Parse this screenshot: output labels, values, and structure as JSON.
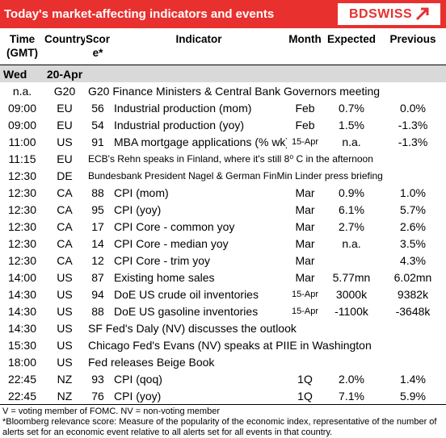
{
  "header": {
    "title": "Today's market-affecting indicators and events",
    "logo": "BDSWISS"
  },
  "columns": {
    "time": "Time (GMT)",
    "country": "Country",
    "score": "Score*",
    "indicator": "Indicator",
    "month": "Month",
    "expected": "Expected",
    "previous": "Previous"
  },
  "day": {
    "weekday": "Wed",
    "date": "20-Apr"
  },
  "rows": [
    {
      "time": "n.a.",
      "country": "G20",
      "indicator": "G20 Finance Ministers & Central Bank Governors meeting"
    },
    {
      "time": "09:00",
      "country": "EU",
      "score": 56,
      "indicator": "Industrial production (mom)",
      "month": "Feb",
      "expected": "0.7%",
      "previous": "0.0%"
    },
    {
      "time": "09:00",
      "country": "EU",
      "score": 54,
      "indicator": "Industrial production (yoy)",
      "month": "Feb",
      "expected": "1.5%",
      "previous": "-1.3%"
    },
    {
      "time": "11:00",
      "country": "US",
      "score": 91,
      "indicator": "MBA mortgage applications (% wk)",
      "month": "15-Apr",
      "expected": "n.a.",
      "previous": "-1.3%"
    },
    {
      "time": "11:15",
      "country": "EU",
      "indicator": "ECB's Rehn speaks in Finland, where it's still 8⁰ C in the afternoon"
    },
    {
      "time": "12:30",
      "country": "DE",
      "indicator": "Bundesbank President Nagel & German FinMin Linder press briefing"
    },
    {
      "time": "12:30",
      "country": "CA",
      "score": 88,
      "indicator": "CPI (mom)",
      "month": "Mar",
      "expected": "0.9%",
      "previous": "1.0%"
    },
    {
      "time": "12:30",
      "country": "CA",
      "score": 95,
      "indicator": "CPI (yoy)",
      "month": "Mar",
      "expected": "6.1%",
      "previous": "5.7%"
    },
    {
      "time": "12:30",
      "country": "CA",
      "score": 17,
      "indicator": "CPI Core - common yoy",
      "month": "Mar",
      "expected": "2.7%",
      "previous": "2.6%"
    },
    {
      "time": "12:30",
      "country": "CA",
      "score": 14,
      "indicator": "CPI Core - median yoy",
      "month": "Mar",
      "expected": "n.a.",
      "previous": "3.5%"
    },
    {
      "time": "12:30",
      "country": "CA",
      "score": 12,
      "indicator": "CPI Core - trim yoy",
      "month": "Mar",
      "previous": "4.3%"
    },
    {
      "time": "14:00",
      "country": "US",
      "score": 87,
      "indicator": "Existing home sales",
      "month": "Mar",
      "expected": "5.77mn",
      "previous": "6.02mn"
    },
    {
      "time": "14:30",
      "country": "US",
      "score": 94,
      "indicator": "DoE US crude oil inventories",
      "month": "15-Apr",
      "expected": "3000k",
      "previous": "9382k"
    },
    {
      "time": "14:30",
      "country": "US",
      "score": 88,
      "indicator": "DoE US gasoline inventories",
      "month": "15-Apr",
      "expected": "-1100k",
      "previous": "-3648k"
    },
    {
      "time": "14:30",
      "country": "US",
      "indicator": "SF Fed's Daly (NV) discusses the outlook"
    },
    {
      "time": "15:30",
      "country": "US",
      "indicator": "Chicago Fed's Evans (NV) speaks at PIIE in Washington"
    },
    {
      "time": "18:00",
      "country": "US",
      "indicator": "Fed releases Beige Book"
    },
    {
      "time": "22:45",
      "country": "NZ",
      "score": 93,
      "indicator": "CPI (qoq)",
      "month": "1Q",
      "expected": "2.0%",
      "previous": "1.4%"
    },
    {
      "time": "22:45",
      "country": "NZ",
      "score": 76,
      "indicator": "CPI (yoy)",
      "month": "1Q",
      "expected": "7.1%",
      "previous": "5.9%"
    }
  ],
  "footnotes": [
    "V = voting member of FOMC. NV = non-voting member",
    "*Bloomberg relevance score:  Measure of the popularity of the economic index, representative of the number of alerts set for an economic event relative to all alerts set for all events in that country."
  ]
}
